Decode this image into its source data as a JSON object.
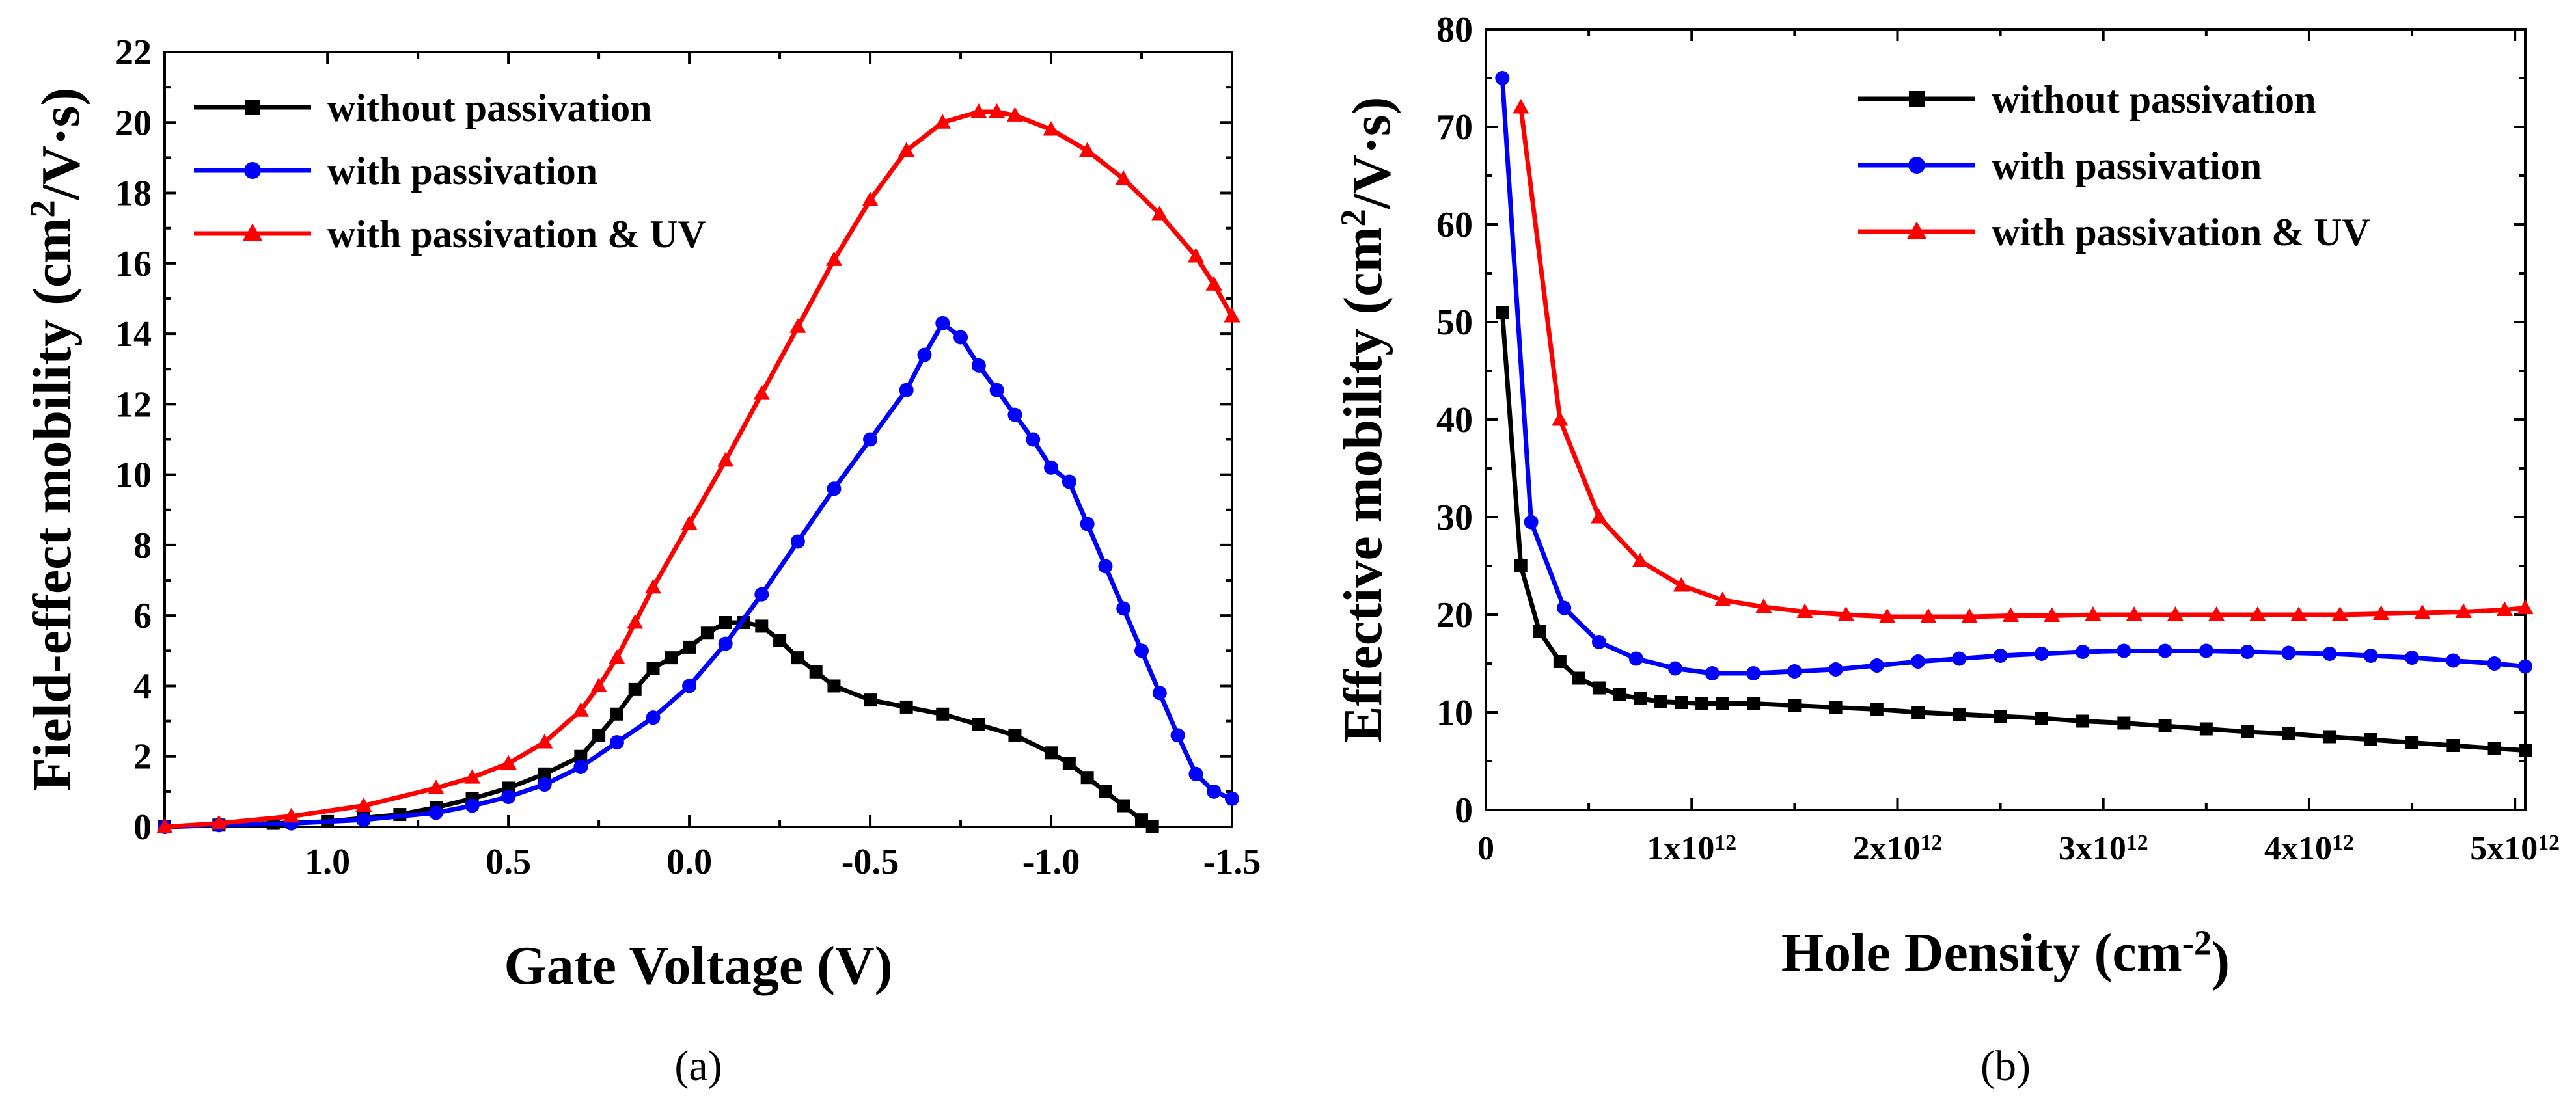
{
  "chart_data": [
    {
      "type": "line",
      "panel_label": "(a)",
      "title": "",
      "xlabel": "Gate Voltage (V)",
      "ylabel": "Field-effect mobility (cm²/V·s)",
      "ylabel_parts": {
        "pre": "Field-effect mobility (cm",
        "sup": "2",
        "post": "/V·s)"
      },
      "xlim": [
        1.45,
        -1.5
      ],
      "ylim": [
        0,
        22
      ],
      "x_ticks": [
        1.0,
        0.5,
        0.0,
        -0.5,
        -1.0,
        -1.5
      ],
      "x_tick_labels": [
        "1.0",
        "0.5",
        "0.0",
        "-0.5",
        "-1.0",
        "-1.5"
      ],
      "y_ticks": [
        0,
        2,
        4,
        6,
        8,
        10,
        12,
        14,
        16,
        18,
        20,
        22
      ],
      "y_tick_labels": [
        "0",
        "2",
        "4",
        "6",
        "8",
        "10",
        "12",
        "14",
        "16",
        "18",
        "20",
        "22"
      ],
      "legend_position": "top-left",
      "series": [
        {
          "name": "without passivation",
          "color": "#000000",
          "marker": "square",
          "x": [
            1.45,
            1.3,
            1.15,
            1.0,
            0.9,
            0.8,
            0.7,
            0.6,
            0.5,
            0.4,
            0.3,
            0.25,
            0.2,
            0.15,
            0.1,
            0.05,
            0.0,
            -0.05,
            -0.1,
            -0.15,
            -0.2,
            -0.25,
            -0.3,
            -0.35,
            -0.4,
            -0.5,
            -0.6,
            -0.7,
            -0.8,
            -0.9,
            -1.0,
            -1.05,
            -1.1,
            -1.15,
            -1.2,
            -1.25,
            -1.28
          ],
          "y": [
            0.0,
            0.05,
            0.1,
            0.15,
            0.25,
            0.35,
            0.55,
            0.8,
            1.1,
            1.5,
            2.0,
            2.6,
            3.2,
            3.9,
            4.5,
            4.8,
            5.1,
            5.5,
            5.8,
            5.8,
            5.7,
            5.3,
            4.8,
            4.4,
            4.0,
            3.6,
            3.4,
            3.2,
            2.9,
            2.6,
            2.1,
            1.8,
            1.4,
            1.0,
            0.6,
            0.2,
            0.0
          ]
        },
        {
          "name": "with passivation",
          "color": "#0000ff",
          "marker": "circle",
          "x": [
            1.45,
            1.3,
            1.1,
            0.9,
            0.7,
            0.6,
            0.5,
            0.4,
            0.3,
            0.2,
            0.1,
            0.0,
            -0.1,
            -0.2,
            -0.3,
            -0.4,
            -0.5,
            -0.6,
            -0.65,
            -0.7,
            -0.75,
            -0.8,
            -0.85,
            -0.9,
            -0.95,
            -1.0,
            -1.05,
            -1.1,
            -1.15,
            -1.2,
            -1.25,
            -1.3,
            -1.35,
            -1.4,
            -1.45,
            -1.5
          ],
          "y": [
            0.0,
            0.05,
            0.1,
            0.2,
            0.4,
            0.6,
            0.85,
            1.2,
            1.7,
            2.4,
            3.1,
            4.0,
            5.2,
            6.6,
            8.1,
            9.6,
            11.0,
            12.4,
            13.4,
            14.3,
            13.9,
            13.1,
            12.4,
            11.7,
            11.0,
            10.2,
            9.8,
            8.6,
            7.4,
            6.2,
            5.0,
            3.8,
            2.6,
            1.5,
            1.0,
            0.8
          ]
        },
        {
          "name": "with passivation & UV",
          "color": "#ff0000",
          "marker": "triangle",
          "x": [
            1.45,
            1.3,
            1.1,
            0.9,
            0.7,
            0.6,
            0.5,
            0.4,
            0.3,
            0.25,
            0.2,
            0.15,
            0.1,
            0.0,
            -0.1,
            -0.2,
            -0.3,
            -0.4,
            -0.5,
            -0.6,
            -0.7,
            -0.8,
            -0.85,
            -0.9,
            -1.0,
            -1.1,
            -1.2,
            -1.3,
            -1.4,
            -1.45,
            -1.5
          ],
          "y": [
            0.0,
            0.1,
            0.3,
            0.6,
            1.1,
            1.4,
            1.8,
            2.4,
            3.3,
            4.0,
            4.8,
            5.8,
            6.8,
            8.6,
            10.4,
            12.3,
            14.2,
            16.1,
            17.8,
            19.2,
            20.0,
            20.3,
            20.3,
            20.2,
            19.8,
            19.2,
            18.4,
            17.4,
            16.2,
            15.4,
            14.5
          ]
        }
      ]
    },
    {
      "type": "line",
      "panel_label": "(b)",
      "title": "",
      "xlabel": "Hole Density (cm⁻²)",
      "xlabel_parts": {
        "pre": "Hole Density (cm",
        "sup": "-2",
        "post": ")"
      },
      "ylabel": "Effective mobility (cm²/V·s)",
      "ylabel_parts": {
        "pre": "Effective mobility (cm",
        "sup": "2",
        "post": "/V·s)"
      },
      "x_unit_scale": 1000000000000.0,
      "xlim": [
        0,
        5.05
      ],
      "ylim": [
        0,
        80
      ],
      "x_ticks": [
        0,
        1,
        2,
        3,
        4,
        5
      ],
      "x_tick_labels": [
        {
          "base": "0",
          "sup": ""
        },
        {
          "base": "1x10",
          "sup": "12"
        },
        {
          "base": "2x10",
          "sup": "12"
        },
        {
          "base": "3x10",
          "sup": "12"
        },
        {
          "base": "4x10",
          "sup": "12"
        },
        {
          "base": "5x10",
          "sup": "12"
        }
      ],
      "y_ticks": [
        0,
        10,
        20,
        30,
        40,
        50,
        60,
        70,
        80
      ],
      "y_tick_labels": [
        "0",
        "10",
        "20",
        "30",
        "40",
        "50",
        "60",
        "70",
        "80"
      ],
      "legend_position": "top-right",
      "series": [
        {
          "name": "without passivation",
          "color": "#000000",
          "marker": "square",
          "x": [
            0.08,
            0.17,
            0.26,
            0.36,
            0.45,
            0.55,
            0.65,
            0.75,
            0.85,
            0.95,
            1.05,
            1.15,
            1.3,
            1.5,
            1.7,
            1.9,
            2.1,
            2.3,
            2.5,
            2.7,
            2.9,
            3.1,
            3.3,
            3.5,
            3.7,
            3.9,
            4.1,
            4.3,
            4.5,
            4.7,
            4.9,
            5.05
          ],
          "y": [
            51,
            25,
            18.3,
            15.2,
            13.5,
            12.5,
            11.8,
            11.4,
            11.1,
            11.0,
            10.9,
            10.9,
            10.9,
            10.7,
            10.5,
            10.3,
            10.0,
            9.8,
            9.6,
            9.4,
            9.1,
            8.9,
            8.6,
            8.3,
            8.0,
            7.8,
            7.5,
            7.2,
            6.9,
            6.6,
            6.3,
            6.1
          ]
        },
        {
          "name": "with passivation",
          "color": "#0000ff",
          "marker": "circle",
          "x": [
            0.08,
            0.22,
            0.38,
            0.55,
            0.73,
            0.92,
            1.1,
            1.3,
            1.5,
            1.7,
            1.9,
            2.1,
            2.3,
            2.5,
            2.7,
            2.9,
            3.1,
            3.3,
            3.5,
            3.7,
            3.9,
            4.1,
            4.3,
            4.5,
            4.7,
            4.9,
            5.05
          ],
          "y": [
            75,
            29.5,
            20.7,
            17.2,
            15.5,
            14.5,
            14.0,
            14.0,
            14.2,
            14.4,
            14.8,
            15.2,
            15.5,
            15.8,
            16.0,
            16.2,
            16.3,
            16.3,
            16.3,
            16.2,
            16.1,
            16.0,
            15.8,
            15.6,
            15.3,
            15.0,
            14.7
          ]
        },
        {
          "name": "with passivation & UV",
          "color": "#ff0000",
          "marker": "triangle",
          "x": [
            0.17,
            0.36,
            0.55,
            0.75,
            0.95,
            1.15,
            1.35,
            1.55,
            1.75,
            1.95,
            2.15,
            2.35,
            2.55,
            2.75,
            2.95,
            3.15,
            3.35,
            3.55,
            3.75,
            3.95,
            4.15,
            4.35,
            4.55,
            4.75,
            4.95,
            5.05
          ],
          "y": [
            72,
            40,
            30,
            25.5,
            23.0,
            21.5,
            20.8,
            20.3,
            20.0,
            19.8,
            19.8,
            19.8,
            19.9,
            19.9,
            20.0,
            20.0,
            20.0,
            20.0,
            20.0,
            20.0,
            20.0,
            20.1,
            20.2,
            20.3,
            20.5,
            20.7
          ]
        }
      ]
    }
  ]
}
